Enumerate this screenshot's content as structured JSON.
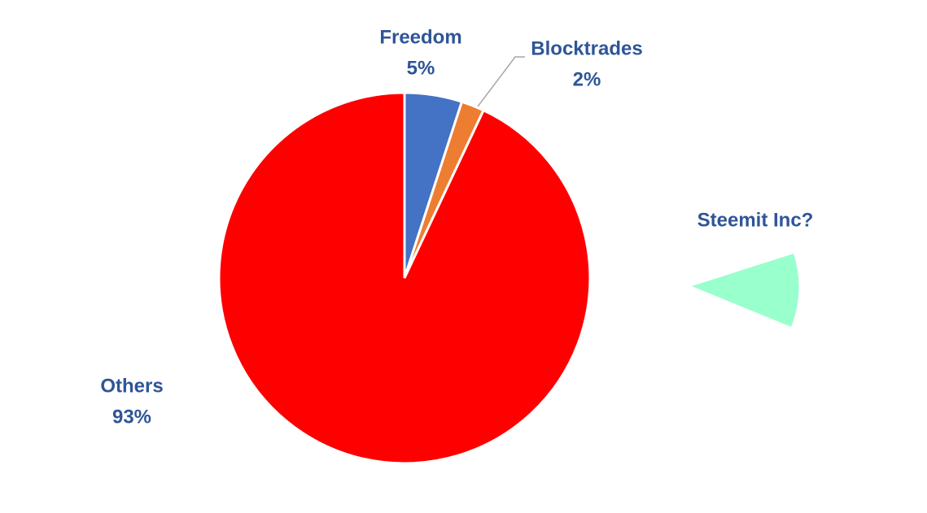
{
  "chart_data": {
    "type": "pie",
    "categories": [
      "Freedom",
      "Blocktrades",
      "Others"
    ],
    "values": [
      5,
      2,
      93
    ],
    "value_labels": [
      "5%",
      "2%",
      "93%"
    ],
    "colors": [
      "#4472c4",
      "#ed7d31",
      "#ff0000"
    ],
    "annotation": "Steemit Inc?"
  }
}
